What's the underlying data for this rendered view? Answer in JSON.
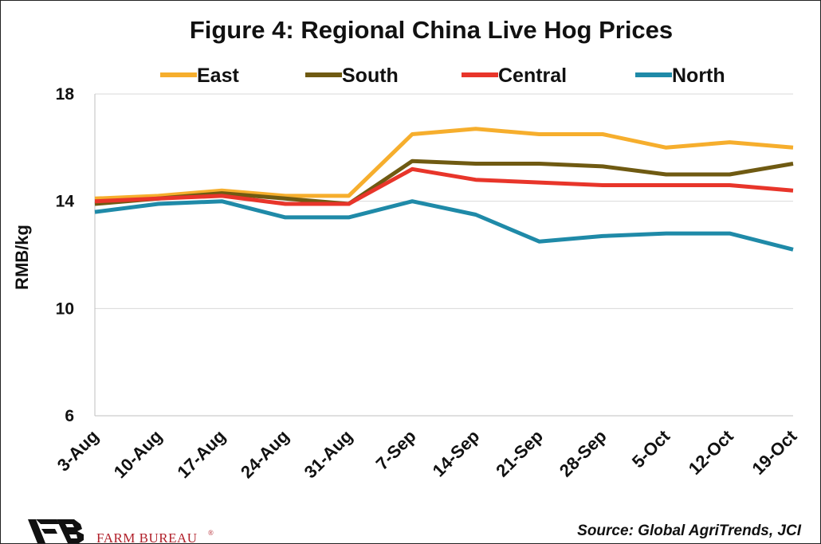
{
  "chart_data": {
    "type": "line",
    "title": "Figure 4: Regional China Live Hog Prices",
    "ylabel": "RMB/kg",
    "xlabel": "",
    "ylim": [
      6,
      18
    ],
    "yticks": [
      "6",
      "10",
      "14",
      "18"
    ],
    "categories": [
      "3-Aug",
      "10-Aug",
      "17-Aug",
      "24-Aug",
      "31-Aug",
      "7-Sep",
      "14-Sep",
      "21-Sep",
      "28-Sep",
      "5-Oct",
      "12-Oct",
      "19-Oct"
    ],
    "grid": "horizontal",
    "legend_position": "top",
    "series": [
      {
        "name": "East",
        "color": "#F6AE2D",
        "values": [
          14.1,
          14.2,
          14.4,
          14.2,
          14.2,
          16.5,
          16.7,
          16.5,
          16.5,
          16.0,
          16.2,
          16.0
        ]
      },
      {
        "name": "South",
        "color": "#6F5A12",
        "values": [
          13.9,
          14.1,
          14.3,
          14.1,
          13.9,
          15.5,
          15.4,
          15.4,
          15.3,
          15.0,
          15.0,
          15.4
        ]
      },
      {
        "name": "Central",
        "color": "#E8352A",
        "values": [
          14.0,
          14.1,
          14.2,
          13.9,
          13.9,
          15.2,
          14.8,
          14.7,
          14.6,
          14.6,
          14.6,
          14.4
        ]
      },
      {
        "name": "North",
        "color": "#1F8AA8",
        "values": [
          13.6,
          13.9,
          14.0,
          13.4,
          13.4,
          14.0,
          13.5,
          12.5,
          12.7,
          12.8,
          12.8,
          12.2
        ]
      }
    ]
  },
  "footer": {
    "source": "Source: Global AgriTrends, JCI",
    "brand_name": "FARM BUREAU",
    "brand_mark": "®"
  }
}
